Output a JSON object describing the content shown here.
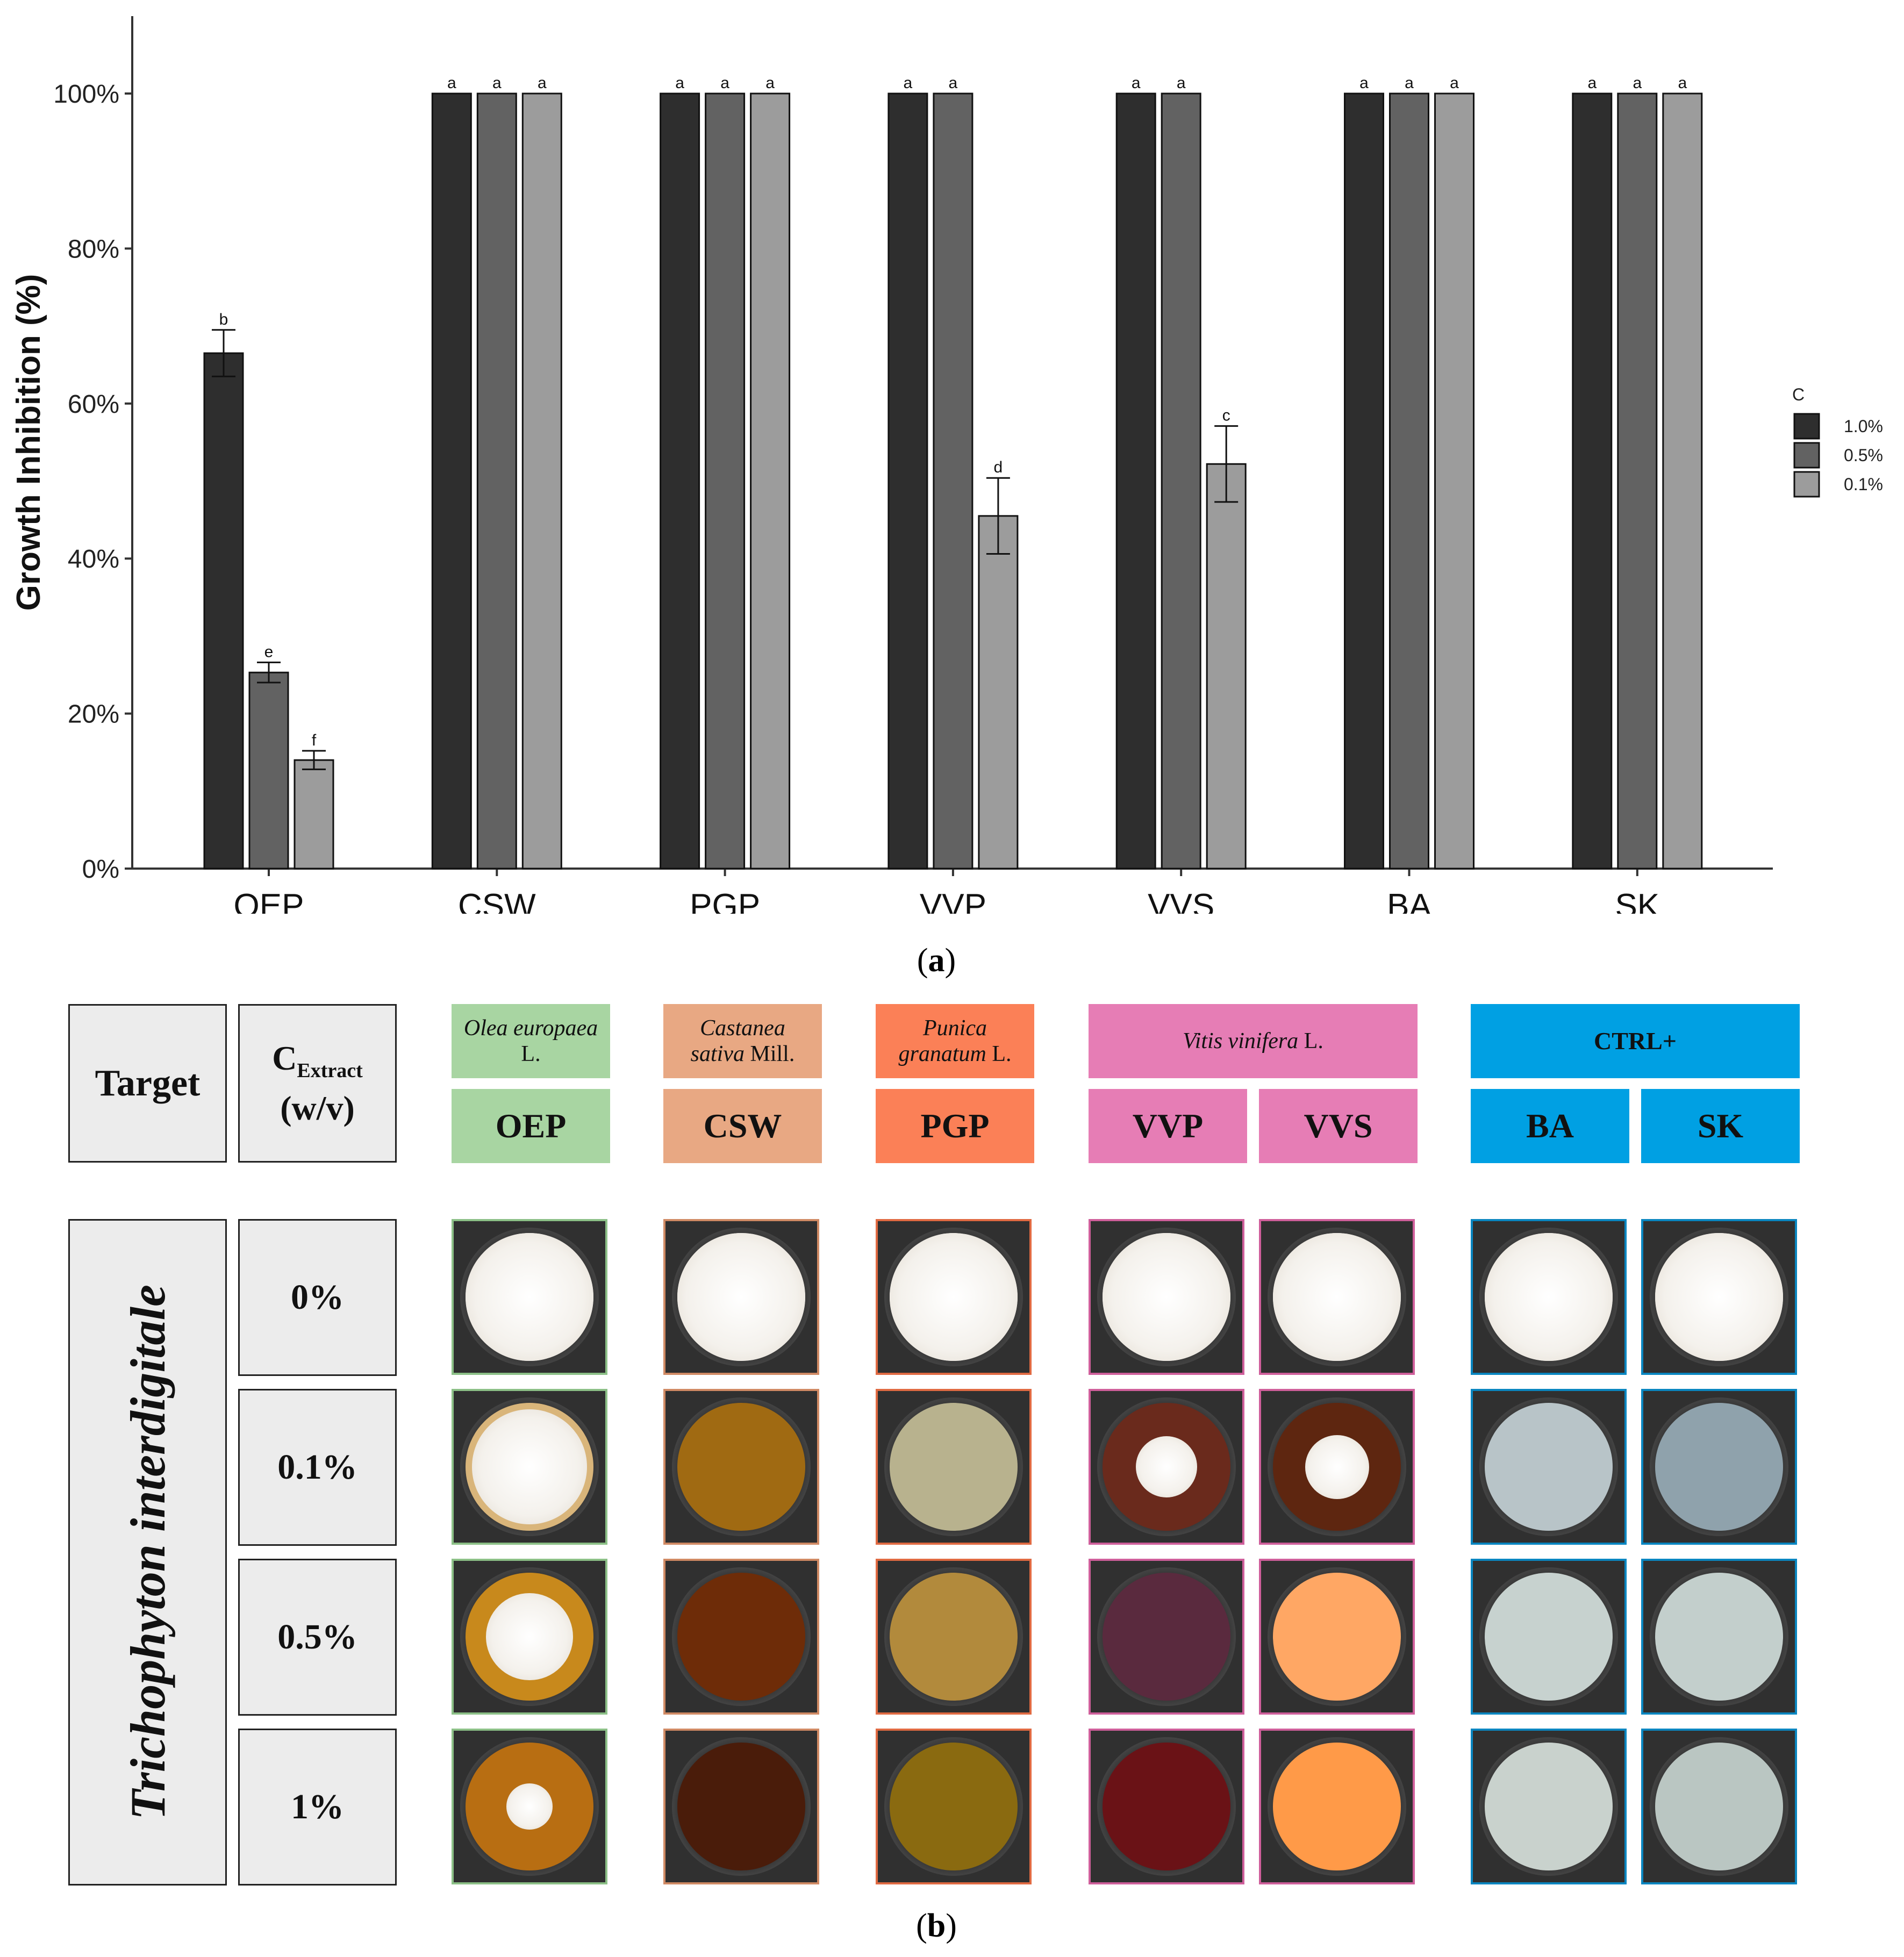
{
  "chart_data": {
    "type": "bar",
    "title": "",
    "xlabel": "",
    "ylabel": "Growth Inhibition (%)",
    "ylim": [
      0,
      110
    ],
    "yticks": [
      0,
      20,
      40,
      60,
      80,
      100
    ],
    "ytick_labels": [
      "0%",
      "20%",
      "40%",
      "60%",
      "80%",
      "100%"
    ],
    "categories": [
      "OEP",
      "CSW",
      "PGP",
      "VVP",
      "VVS",
      "BA",
      "SK"
    ],
    "legend_title": "C",
    "legend_position": "right",
    "series": [
      {
        "name": "1.0%",
        "color": "#2e2e2e",
        "values": [
          66.5,
          100,
          100,
          100,
          100,
          100,
          100
        ],
        "errors": [
          3.0,
          0,
          0,
          0,
          0,
          0,
          0
        ],
        "letters": [
          "b",
          "a",
          "a",
          "a",
          "a",
          "a",
          "a"
        ]
      },
      {
        "name": "0.5%",
        "color": "#626262",
        "values": [
          25.3,
          100,
          100,
          100,
          100,
          100,
          100
        ],
        "errors": [
          1.3,
          0,
          0,
          0,
          0,
          0,
          0
        ],
        "letters": [
          "e",
          "a",
          "a",
          "a",
          "a",
          "a",
          "a"
        ]
      },
      {
        "name": "0.1%",
        "color": "#9c9c9c",
        "values": [
          14.0,
          100,
          100,
          45.5,
          52.2,
          100,
          100
        ],
        "errors": [
          1.2,
          0,
          0,
          4.9,
          4.9,
          0,
          0
        ],
        "letters": [
          "f",
          "a",
          "a",
          "d",
          "c",
          "a",
          "a"
        ]
      }
    ],
    "hidden_bars": [
      [
        3,
        2
      ],
      [
        4,
        2
      ]
    ]
  },
  "panel_a_label": "(a)",
  "panel_b_label": "(b)",
  "panel_a_letter": "a",
  "panel_b_letter": "b",
  "grid": {
    "target_header": "Target",
    "conc_header_main": "C",
    "conc_header_sub": "Extract",
    "conc_header_unit": "(w/v)",
    "target_species": "Trichophyton interdigitale",
    "sources": [
      {
        "name_italic": "Olea europaea",
        "name_plain": " L.",
        "color": "#a8d5a2",
        "border": "#8cc087"
      },
      {
        "name_italic": "Castanea sativa",
        "name_plain": " Mill.",
        "color": "#e8a883",
        "border": "#d08a64"
      },
      {
        "name_italic": "Punica granatum",
        "name_plain": " L.",
        "color": "#fb8057",
        "border": "#e06a42"
      },
      {
        "name_italic": "Vitis vinifera",
        "name_plain": " L.",
        "color": "#e67db5",
        "border": "#cf5f9b"
      },
      {
        "name_italic": "",
        "name_plain": "CTRL+",
        "color": "#00a0e3",
        "border": "#0a86c0"
      }
    ],
    "codes": [
      "OEP",
      "CSW",
      "PGP",
      "VVP",
      "VVS",
      "BA",
      "SK"
    ],
    "concentrations": [
      "0%",
      "0.1%",
      "0.5%",
      "1%"
    ],
    "plates": [
      [
        {
          "agar": "#ece9e4",
          "colony": 1.0
        },
        {
          "agar": "#ece9e4",
          "colony": 1.0
        },
        {
          "agar": "#ece9e4",
          "colony": 1.0
        },
        {
          "agar": "#ece9e4",
          "colony": 1.0
        },
        {
          "agar": "#ece9e4",
          "colony": 1.0
        },
        {
          "agar": "#ece9e4",
          "colony": 1.0
        },
        {
          "agar": "#ece9e4",
          "colony": 1.0
        }
      ],
      [
        {
          "agar": "#d9b57a",
          "colony": 0.9
        },
        {
          "agar": "#a06a12",
          "colony": 0
        },
        {
          "agar": "#b8b28e",
          "colony": 0
        },
        {
          "agar": "#6a2a1c",
          "colony": 0.48
        },
        {
          "agar": "#5e2610",
          "colony": 0.5
        },
        {
          "agar": "#b8c4c8",
          "colony": 0
        },
        {
          "agar": "#8fa2ac",
          "colony": 0
        }
      ],
      [
        {
          "agar": "#c8891c",
          "colony": 0.68
        },
        {
          "agar": "#6e2c08",
          "colony": 0
        },
        {
          "agar": "#b28a3c",
          "colony": 0
        },
        {
          "agar": "#5a2a3e",
          "colony": 0
        },
        {
          "agar": "#ffa764",
          "colony": 0
        },
        {
          "agar": "#c7d2cf",
          "colony": 0
        },
        {
          "agar": "#c3cfcc",
          "colony": 0
        }
      ],
      [
        {
          "agar": "#b86e12",
          "colony": 0.36
        },
        {
          "agar": "#4a1c0a",
          "colony": 0
        },
        {
          "agar": "#8a6a10",
          "colony": 0
        },
        {
          "agar": "#6a1216",
          "colony": 0
        },
        {
          "agar": "#ff9a48",
          "colony": 0
        },
        {
          "agar": "#c9d2cd",
          "colony": 0
        },
        {
          "agar": "#bac6c2",
          "colony": 0
        }
      ]
    ]
  }
}
